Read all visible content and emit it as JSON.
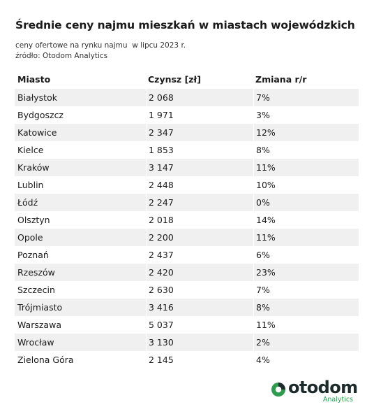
{
  "title": "Średnie ceny najmu mieszkań w miastach wojewódzkich",
  "subtitle_line1": "ceny ofertowe na rynku najmu  w lipcu 2023 r.",
  "subtitle_line2": "źródło: Otodom Analytics",
  "logo": {
    "word": "otodom",
    "sub": "Analytics",
    "icon": "otodom-logo-icon",
    "colors": {
      "dark": "#1e2b2b",
      "green": "#2e9b4e"
    }
  },
  "chart_data": {
    "type": "table",
    "columns": [
      "Miasto",
      "Czynsz [zł]",
      "Zmiana r/r"
    ],
    "rows": [
      [
        "Białystok",
        "2 068",
        "7%"
      ],
      [
        "Bydgoszcz",
        "1 971",
        "3%"
      ],
      [
        "Katowice",
        "2 347",
        "12%"
      ],
      [
        "Kielce",
        "1 853",
        "8%"
      ],
      [
        "Kraków",
        "3 147",
        "11%"
      ],
      [
        "Lublin",
        "2 448",
        "10%"
      ],
      [
        "Łódź",
        "2 247",
        "0%"
      ],
      [
        "Olsztyn",
        "2 018",
        "14%"
      ],
      [
        "Opole",
        "2 200",
        "11%"
      ],
      [
        "Poznań",
        "2 437",
        "6%"
      ],
      [
        "Rzeszów",
        "2 420",
        "23%"
      ],
      [
        "Szczecin",
        "2 630",
        "7%"
      ],
      [
        "Trójmiasto",
        "3 416",
        "8%"
      ],
      [
        "Warszawa",
        "5 037",
        "11%"
      ],
      [
        "Wrocław",
        "3 130",
        "2%"
      ],
      [
        "Zielona Góra",
        "2 145",
        "4%"
      ]
    ]
  }
}
